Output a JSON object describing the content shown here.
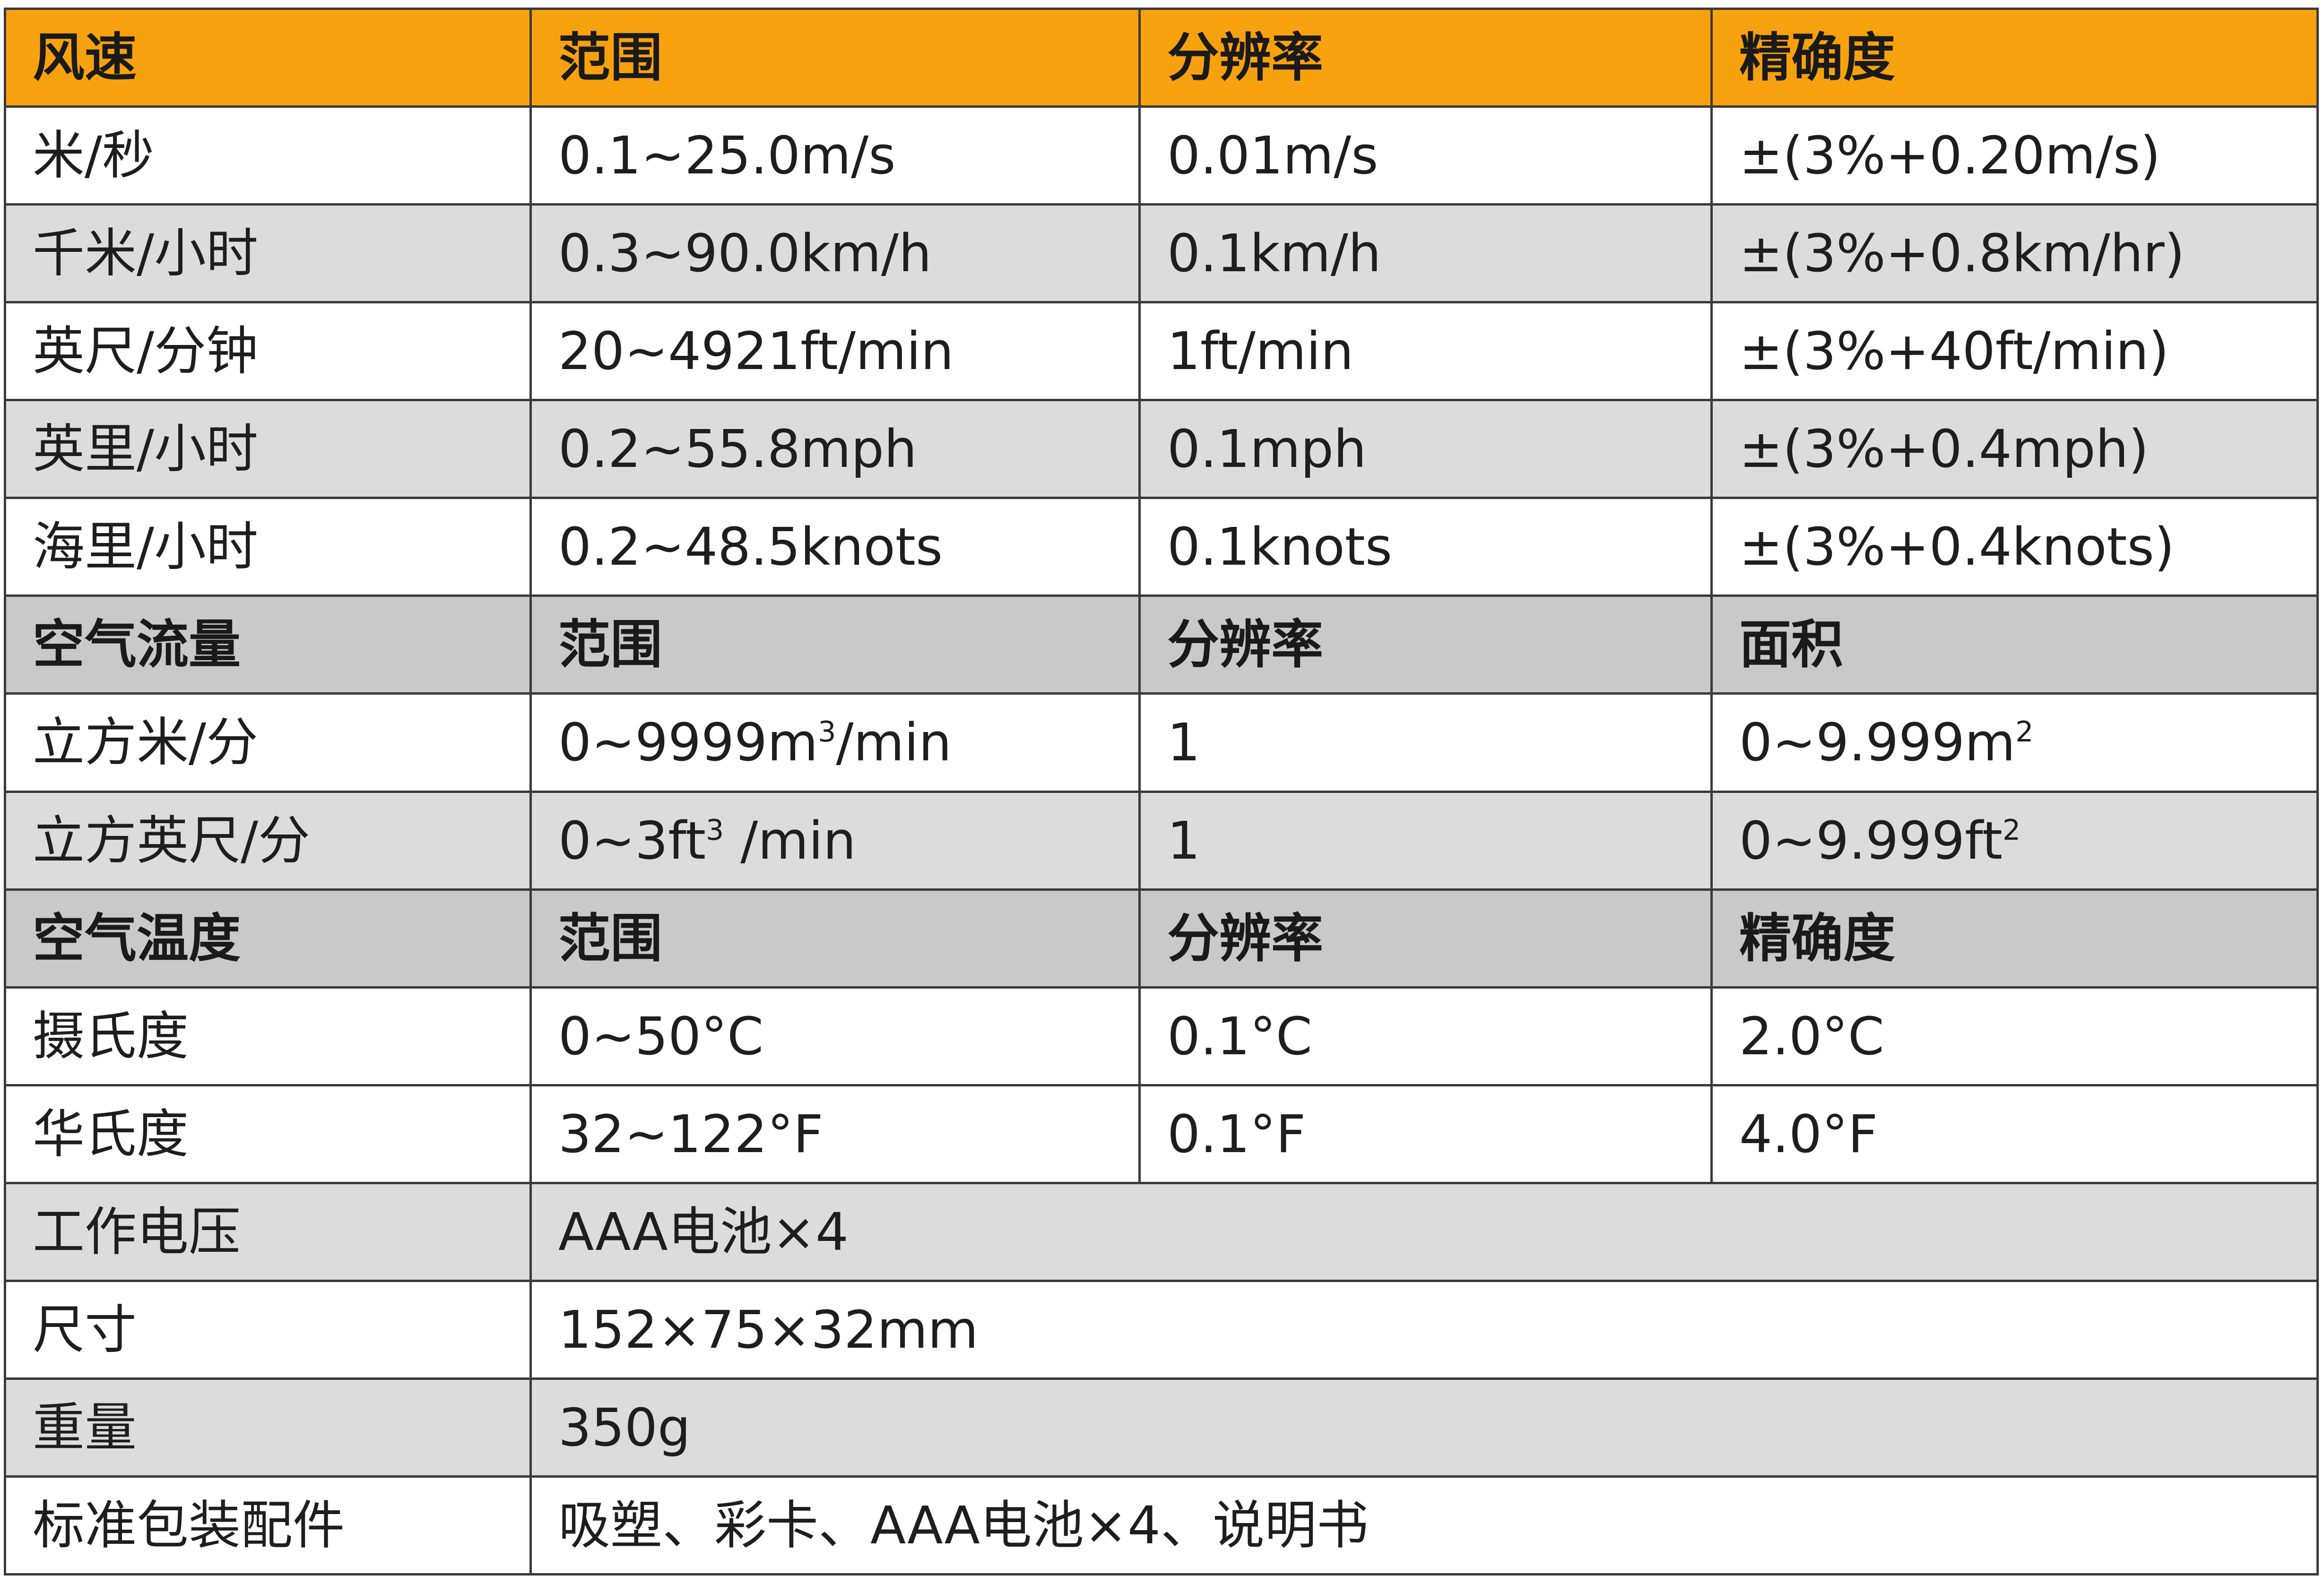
{
  "wind_speed": {
    "header": [
      "风速",
      "范围",
      "分辨率",
      "精确度"
    ],
    "rows": [
      [
        "米/秒",
        "0.1~25.0m/s",
        "0.01m/s",
        "±(3%+0.20m/s)"
      ],
      [
        "千米/小时",
        "0.3~90.0km/h",
        "0.1km/h",
        "±(3%+0.8km/hr)"
      ],
      [
        "英尺/分钟",
        "20~4921ft/min",
        "1ft/min",
        "±(3%+40ft/min)"
      ],
      [
        "英里/小时",
        "0.2~55.8mph",
        "0.1mph",
        "±(3%+0.4mph)"
      ],
      [
        "海里/小时",
        "0.2~48.5knots",
        "0.1knots",
        "±(3%+0.4knots)"
      ]
    ]
  },
  "air_flow": {
    "header": [
      "空气流量",
      "范围",
      "分辨率",
      "面积"
    ],
    "rows": [
      {
        "label": "立方米/分",
        "range_pre": "0~9999m",
        "range_sup": "3",
        "range_post": "/min",
        "resolution": "1",
        "area_pre": "0~9.999m",
        "area_sup": "2",
        "area_post": ""
      },
      {
        "label": "立方英尺/分",
        "range_pre": "0~3ft",
        "range_sup": "3",
        "range_post": " /min",
        "resolution": "1",
        "area_pre": "0~9.999ft",
        "area_sup": "2",
        "area_post": ""
      }
    ]
  },
  "air_temperature": {
    "header": [
      "空气温度",
      "范围",
      "分辨率",
      "精确度"
    ],
    "rows": [
      [
        "摄氏度",
        "0~50°C",
        "0.1°C",
        "2.0°C"
      ],
      [
        "华氏度",
        "32~122°F",
        "0.1°F",
        "4.0°F"
      ]
    ]
  },
  "general": [
    [
      "工作电压",
      "AAA电池×4"
    ],
    [
      "尺寸",
      "152×75×32mm"
    ],
    [
      "重量",
      "350g"
    ],
    [
      "标准包装配件",
      "吸塑、彩卡、AAA电池×4、说明书"
    ]
  ],
  "colors": {
    "header_orange": "#f8a10e",
    "band_gray": "#dcdcdc",
    "section_gray": "#c9c9c9",
    "border": "#3a3a3a"
  }
}
